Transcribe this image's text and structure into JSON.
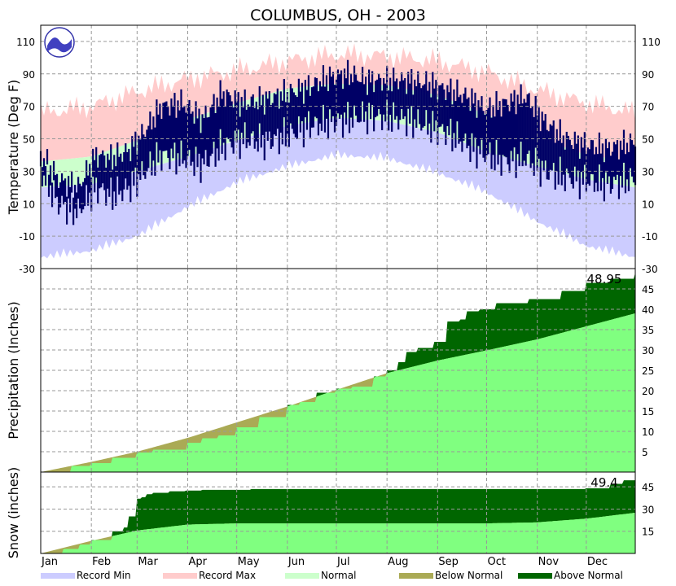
{
  "chart_data": {
    "type": "area",
    "title": "COLUMBUS, OH - 2003",
    "months": [
      "Jan",
      "Feb",
      "Mar",
      "Apr",
      "May",
      "Jun",
      "Jul",
      "Aug",
      "Sep",
      "Oct",
      "Nov",
      "Dec"
    ],
    "legend": [
      {
        "label": "Record Min",
        "color": "#ccccff"
      },
      {
        "label": "Record Max",
        "color": "#ffcccc"
      },
      {
        "label": "Normal",
        "color": "#ccffcc"
      },
      {
        "label": "Below Normal",
        "color": "#aaaa55"
      },
      {
        "label": "Above Normal",
        "color": "#006600"
      }
    ],
    "colors": {
      "observed_temp": "#000066",
      "normal_precip": "#80ff80",
      "grid": "#999999"
    },
    "panels": [
      {
        "id": "temperature",
        "ylabel": "Temperature (Deg F)",
        "ylim": [
          -30,
          120
        ],
        "ticks": [
          -30,
          -10,
          10,
          30,
          50,
          70,
          90,
          110
        ],
        "normal_high": {
          "day": [
            1,
            32,
            60,
            91,
            121,
            152,
            182,
            213,
            244,
            274,
            305,
            335,
            365
          ],
          "value": [
            36,
            39,
            49,
            62,
            72,
            81,
            84,
            83,
            77,
            65,
            51,
            40,
            36
          ]
        },
        "normal_low": {
          "day": [
            1,
            32,
            60,
            91,
            121,
            152,
            182,
            213,
            244,
            274,
            305,
            335,
            365
          ],
          "value": [
            20,
            22,
            30,
            39,
            49,
            58,
            63,
            61,
            54,
            42,
            33,
            25,
            20
          ]
        },
        "record_max": {
          "day": [
            1,
            32,
            60,
            91,
            121,
            152,
            182,
            213,
            244,
            274,
            305,
            335,
            365
          ],
          "value": [
            66,
            70,
            79,
            87,
            92,
            98,
            102,
            101,
            98,
            91,
            80,
            72,
            66
          ]
        },
        "record_min": {
          "day": [
            1,
            32,
            60,
            91,
            121,
            152,
            182,
            213,
            244,
            274,
            305,
            335,
            365
          ],
          "value": [
            -19,
            -15,
            -6,
            12,
            27,
            37,
            44,
            42,
            33,
            21,
            3,
            -12,
            -19
          ]
        },
        "observed": [
          {
            "day": 1,
            "low": 30,
            "high": 40
          },
          {
            "day": 12,
            "low": 10,
            "high": 25
          },
          {
            "day": 24,
            "low": 5,
            "high": 20
          },
          {
            "day": 35,
            "low": 20,
            "high": 40
          },
          {
            "day": 45,
            "low": 15,
            "high": 38
          },
          {
            "day": 55,
            "low": 20,
            "high": 43
          },
          {
            "day": 65,
            "low": 30,
            "high": 55
          },
          {
            "day": 75,
            "low": 40,
            "high": 70
          },
          {
            "day": 88,
            "low": 38,
            "high": 72
          },
          {
            "day": 100,
            "low": 34,
            "high": 62
          },
          {
            "day": 112,
            "low": 45,
            "high": 78
          },
          {
            "day": 125,
            "low": 50,
            "high": 72
          },
          {
            "day": 138,
            "low": 48,
            "high": 74
          },
          {
            "day": 152,
            "low": 52,
            "high": 78
          },
          {
            "day": 165,
            "low": 58,
            "high": 82
          },
          {
            "day": 178,
            "low": 60,
            "high": 88
          },
          {
            "day": 190,
            "low": 62,
            "high": 90
          },
          {
            "day": 200,
            "low": 64,
            "high": 86
          },
          {
            "day": 213,
            "low": 63,
            "high": 86
          },
          {
            "day": 225,
            "low": 62,
            "high": 86
          },
          {
            "day": 238,
            "low": 58,
            "high": 84
          },
          {
            "day": 250,
            "low": 54,
            "high": 80
          },
          {
            "day": 262,
            "low": 46,
            "high": 76
          },
          {
            "day": 274,
            "low": 40,
            "high": 68
          },
          {
            "day": 285,
            "low": 36,
            "high": 72
          },
          {
            "day": 298,
            "low": 38,
            "high": 76
          },
          {
            "day": 310,
            "low": 30,
            "high": 60
          },
          {
            "day": 322,
            "low": 26,
            "high": 50
          },
          {
            "day": 335,
            "low": 24,
            "high": 46
          },
          {
            "day": 348,
            "low": 22,
            "high": 44
          },
          {
            "day": 365,
            "low": 25,
            "high": 48
          }
        ]
      },
      {
        "id": "precipitation",
        "ylabel": "Precipitation (Inches)",
        "ylim": [
          0,
          50
        ],
        "ticks": [
          5,
          10,
          15,
          20,
          25,
          30,
          35,
          40,
          45
        ],
        "annotation": "48.95",
        "normal_cumulative": {
          "day": [
            1,
            32,
            60,
            91,
            121,
            152,
            182,
            213,
            244,
            274,
            305,
            335,
            365
          ],
          "value": [
            0,
            2.5,
            5,
            8.4,
            12.2,
            16.1,
            20.2,
            24.3,
            27.4,
            29.9,
            32.6,
            35.8,
            39
          ]
        },
        "observed_cumulative": {
          "day": [
            1,
            20,
            32,
            45,
            60,
            70,
            91,
            100,
            110,
            121,
            135,
            152,
            160,
            170,
            182,
            192,
            205,
            213,
            220,
            225,
            232,
            242,
            250,
            258,
            262,
            270,
            280,
            300,
            320,
            335,
            350,
            365
          ],
          "value": [
            0,
            1.5,
            2.2,
            3.5,
            4.8,
            5.5,
            7.2,
            8.3,
            9.0,
            11.0,
            13.5,
            16.5,
            17.2,
            19.5,
            20.5,
            21.0,
            23.5,
            25.0,
            27.0,
            29.5,
            30.5,
            32.0,
            37.0,
            37.5,
            39.5,
            40.0,
            41.5,
            42.5,
            44.5,
            46.5,
            47.5,
            48.95
          ]
        }
      },
      {
        "id": "snow",
        "ylabel": "Snow (inches)",
        "ylim": [
          0,
          55
        ],
        "ticks": [
          15,
          30,
          45
        ],
        "annotation": "49.4",
        "normal_cumulative": {
          "day": [
            1,
            32,
            60,
            91,
            121,
            274,
            305,
            335,
            365
          ],
          "value": [
            0,
            8.5,
            15.5,
            19.5,
            20.3,
            20.3,
            21.0,
            23.5,
            27.5
          ]
        },
        "observed_cumulative": {
          "day": [
            1,
            15,
            25,
            32,
            45,
            52,
            55,
            60,
            63,
            66,
            70,
            80,
            90,
            100,
            130,
            300,
            330,
            335,
            350,
            358,
            365
          ],
          "value": [
            0,
            3,
            6,
            9,
            15,
            17.5,
            25,
            37,
            38,
            40,
            41,
            42,
            42.5,
            43,
            43.5,
            43.5,
            43.5,
            44,
            47,
            49.4,
            49.4
          ]
        }
      }
    ]
  }
}
